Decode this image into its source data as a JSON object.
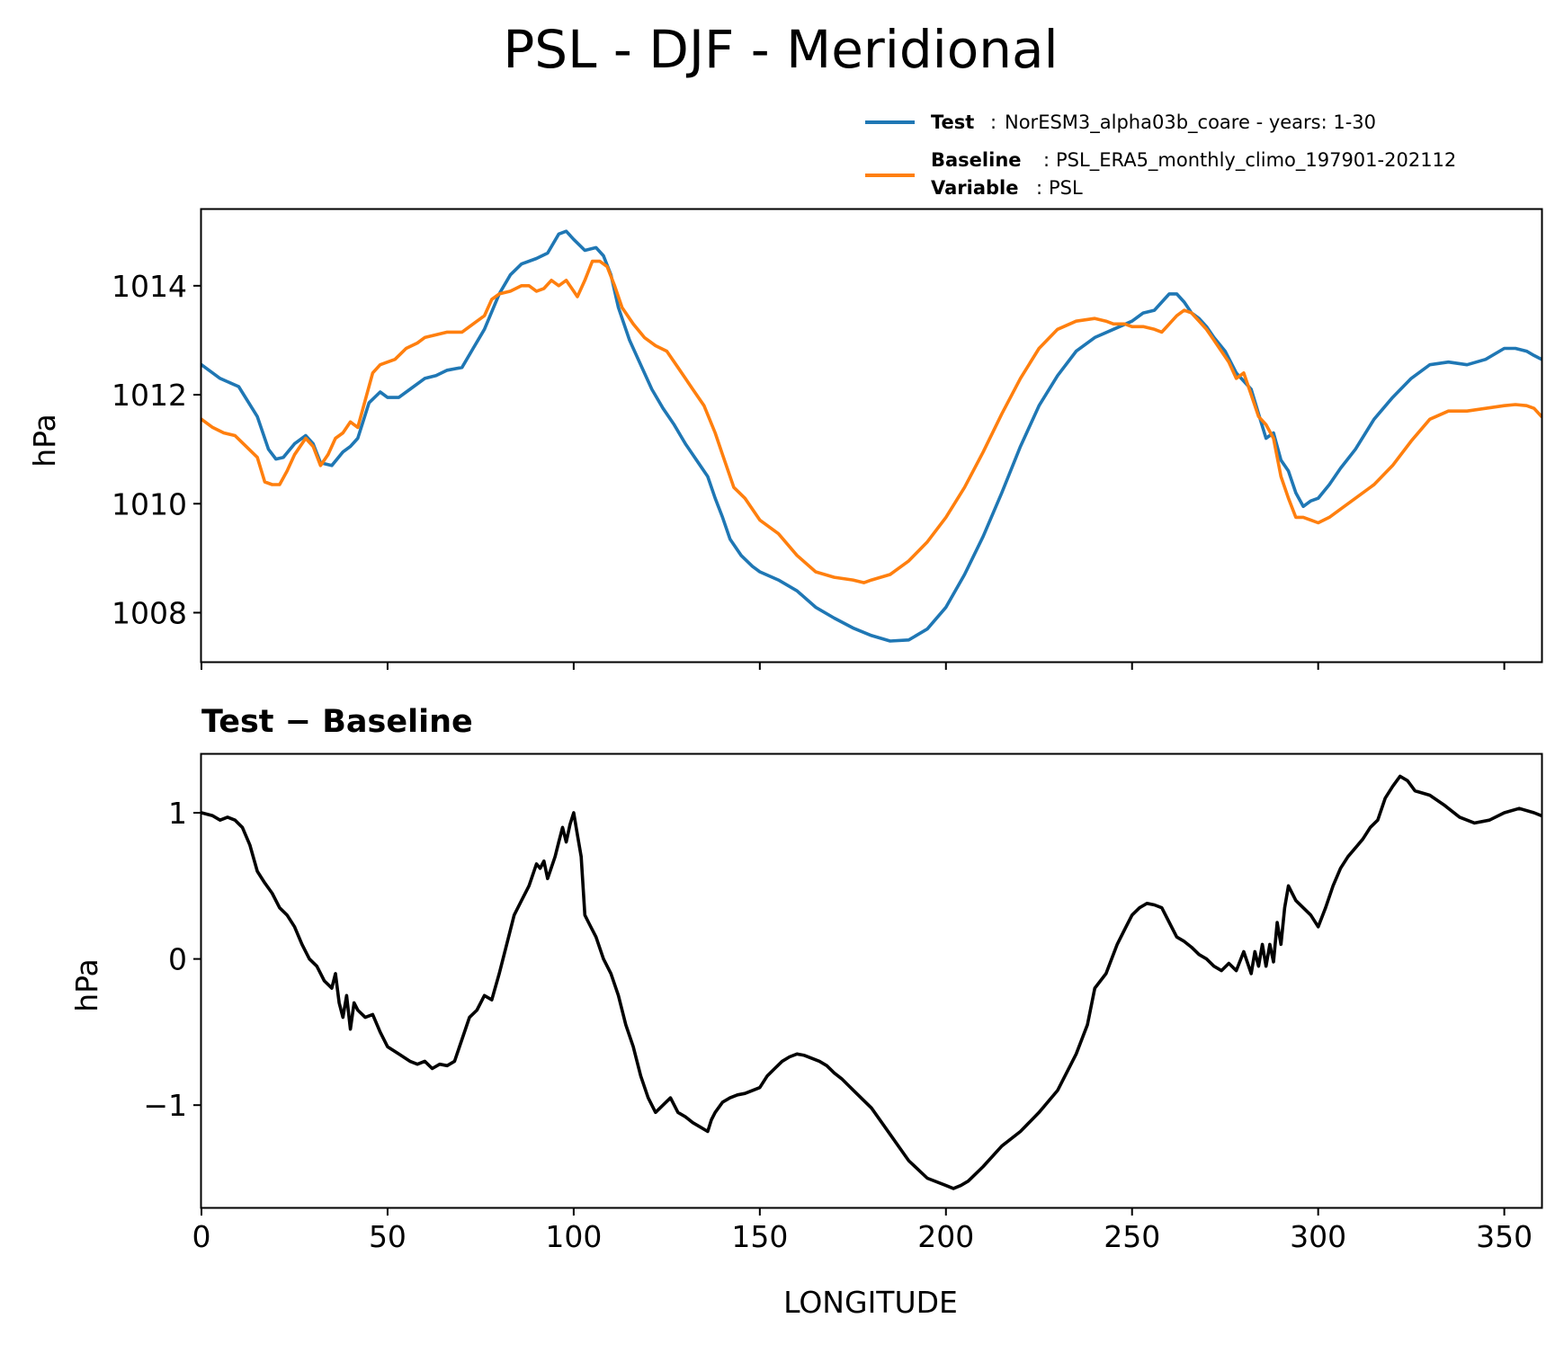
{
  "chart_data": [
    {
      "type": "line",
      "title": "PSL - DJF - Meridional",
      "ylabel": "hPa",
      "xlim": [
        0,
        360
      ],
      "ylim": [
        1007.1,
        1015.4
      ],
      "yticks": [
        1008,
        1010,
        1012,
        1014
      ],
      "xticks": [
        0,
        50,
        100,
        150,
        200,
        250,
        300,
        350
      ],
      "legend": {
        "placement": "top-right",
        "test_label": "Test",
        "test_value": "NorESM3_alpha03b_coare - years: 1-30",
        "baseline_label": "Baseline",
        "baseline_value": "PSL_ERA5_monthly_climo_197901-202112",
        "variable_label": "Variable",
        "variable_value": "PSL",
        "separator": ":"
      },
      "series": [
        {
          "name": "Test",
          "color": "#1f77b4",
          "x": [
            0,
            5,
            10,
            15,
            18,
            20,
            22,
            25,
            28,
            30,
            32,
            35,
            38,
            40,
            42,
            45,
            48,
            50,
            53,
            56,
            60,
            63,
            66,
            70,
            73,
            76,
            80,
            83,
            86,
            90,
            93,
            96,
            98,
            100,
            103,
            106,
            108,
            110,
            112,
            115,
            118,
            121,
            124,
            127,
            130,
            133,
            136,
            138,
            140,
            142,
            145,
            148,
            150,
            155,
            160,
            165,
            170,
            175,
            180,
            185,
            190,
            195,
            200,
            205,
            210,
            215,
            220,
            225,
            230,
            235,
            240,
            245,
            250,
            253,
            256,
            258,
            260,
            262,
            264,
            266,
            268,
            270,
            272,
            275,
            278,
            280,
            282,
            284,
            286,
            288,
            290,
            292,
            294,
            296,
            298,
            300,
            303,
            306,
            310,
            315,
            320,
            325,
            330,
            335,
            340,
            345,
            350,
            353,
            356,
            358,
            360
          ],
          "values": [
            1012.55,
            1012.3,
            1012.15,
            1011.6,
            1011.0,
            1010.82,
            1010.85,
            1011.1,
            1011.25,
            1011.1,
            1010.75,
            1010.7,
            1010.95,
            1011.05,
            1011.2,
            1011.85,
            1012.05,
            1011.95,
            1011.95,
            1012.1,
            1012.3,
            1012.35,
            1012.45,
            1012.5,
            1012.85,
            1013.2,
            1013.85,
            1014.2,
            1014.4,
            1014.5,
            1014.6,
            1014.95,
            1015.0,
            1014.85,
            1014.65,
            1014.7,
            1014.55,
            1014.2,
            1013.6,
            1013.0,
            1012.55,
            1012.1,
            1011.75,
            1011.45,
            1011.1,
            1010.8,
            1010.5,
            1010.1,
            1009.75,
            1009.35,
            1009.05,
            1008.85,
            1008.75,
            1008.6,
            1008.4,
            1008.1,
            1007.9,
            1007.72,
            1007.58,
            1007.48,
            1007.5,
            1007.7,
            1008.1,
            1008.7,
            1009.4,
            1010.2,
            1011.05,
            1011.8,
            1012.35,
            1012.8,
            1013.05,
            1013.2,
            1013.35,
            1013.5,
            1013.55,
            1013.7,
            1013.85,
            1013.85,
            1013.7,
            1013.5,
            1013.4,
            1013.25,
            1013.05,
            1012.8,
            1012.4,
            1012.25,
            1012.1,
            1011.65,
            1011.2,
            1011.3,
            1010.8,
            1010.6,
            1010.2,
            1009.95,
            1010.05,
            1010.1,
            1010.35,
            1010.65,
            1011.0,
            1011.55,
            1011.95,
            1012.3,
            1012.55,
            1012.6,
            1012.55,
            1012.65,
            1012.85,
            1012.85,
            1012.8,
            1012.72,
            1012.65
          ]
        },
        {
          "name": "Baseline",
          "color": "#ff7f0e",
          "x": [
            0,
            3,
            6,
            9,
            12,
            15,
            17,
            19,
            21,
            23,
            25,
            28,
            30,
            32,
            34,
            36,
            38,
            40,
            42,
            44,
            46,
            48,
            50,
            52,
            55,
            58,
            60,
            63,
            66,
            70,
            73,
            76,
            78,
            80,
            83,
            86,
            88,
            90,
            92,
            94,
            96,
            98,
            100,
            101,
            103,
            105,
            107,
            109,
            111,
            113,
            116,
            119,
            122,
            125,
            128,
            130,
            132,
            135,
            138,
            140,
            143,
            146,
            150,
            155,
            160,
            165,
            170,
            175,
            178,
            180,
            185,
            190,
            195,
            200,
            205,
            210,
            215,
            220,
            225,
            230,
            235,
            240,
            243,
            245,
            248,
            250,
            253,
            256,
            258,
            260,
            262,
            264,
            266,
            268,
            270,
            272,
            274,
            276,
            278,
            280,
            282,
            284,
            286,
            288,
            290,
            292,
            294,
            296,
            298,
            300,
            303,
            306,
            310,
            315,
            320,
            325,
            330,
            335,
            340,
            345,
            350,
            353,
            356,
            358,
            360
          ],
          "values": [
            1011.55,
            1011.4,
            1011.3,
            1011.25,
            1011.05,
            1010.85,
            1010.4,
            1010.35,
            1010.35,
            1010.6,
            1010.9,
            1011.2,
            1011.05,
            1010.7,
            1010.9,
            1011.2,
            1011.3,
            1011.5,
            1011.4,
            1011.9,
            1012.4,
            1012.55,
            1012.6,
            1012.65,
            1012.85,
            1012.95,
            1013.05,
            1013.1,
            1013.15,
            1013.15,
            1013.3,
            1013.45,
            1013.75,
            1013.85,
            1013.9,
            1014.0,
            1014.0,
            1013.9,
            1013.95,
            1014.1,
            1014.0,
            1014.1,
            1013.9,
            1013.8,
            1014.1,
            1014.45,
            1014.45,
            1014.35,
            1014.0,
            1013.6,
            1013.3,
            1013.05,
            1012.9,
            1012.8,
            1012.5,
            1012.3,
            1012.1,
            1011.8,
            1011.3,
            1010.9,
            1010.3,
            1010.1,
            1009.7,
            1009.45,
            1009.05,
            1008.75,
            1008.65,
            1008.6,
            1008.55,
            1008.6,
            1008.7,
            1008.95,
            1009.3,
            1009.75,
            1010.3,
            1010.95,
            1011.65,
            1012.3,
            1012.85,
            1013.2,
            1013.35,
            1013.4,
            1013.35,
            1013.3,
            1013.3,
            1013.25,
            1013.25,
            1013.2,
            1013.15,
            1013.3,
            1013.45,
            1013.55,
            1013.5,
            1013.35,
            1013.2,
            1013.0,
            1012.8,
            1012.6,
            1012.3,
            1012.4,
            1012.0,
            1011.6,
            1011.45,
            1011.2,
            1010.5,
            1010.1,
            1009.75,
            1009.75,
            1009.7,
            1009.65,
            1009.75,
            1009.9,
            1010.1,
            1010.35,
            1010.7,
            1011.15,
            1011.55,
            1011.7,
            1011.7,
            1011.75,
            1011.8,
            1011.82,
            1011.8,
            1011.75,
            1011.6
          ]
        }
      ]
    },
    {
      "type": "line",
      "title": "Test − Baseline",
      "xlabel": "LONGITUDE",
      "ylabel": "hPa",
      "xlim": [
        0,
        360
      ],
      "ylim": [
        -1.7,
        1.4
      ],
      "yticks": [
        1,
        0,
        -1
      ],
      "ytick_labels": [
        "1",
        "0",
        "−1"
      ],
      "xticks": [
        0,
        50,
        100,
        150,
        200,
        250,
        300,
        350
      ],
      "series": [
        {
          "name": "Test − Baseline",
          "color": "#000000",
          "x": [
            0,
            3,
            5,
            7,
            9,
            11,
            13,
            15,
            17,
            19,
            21,
            23,
            25,
            27,
            29,
            31,
            33,
            35,
            36,
            37,
            38,
            39,
            40,
            41,
            42,
            44,
            46,
            48,
            50,
            53,
            56,
            58,
            60,
            62,
            64,
            66,
            68,
            70,
            72,
            74,
            76,
            78,
            80,
            82,
            84,
            86,
            88,
            90,
            91,
            92,
            93,
            95,
            96,
            97,
            98,
            99,
            100,
            101,
            102,
            103,
            104,
            106,
            108,
            110,
            112,
            114,
            116,
            118,
            120,
            122,
            124,
            126,
            128,
            130,
            132,
            134,
            136,
            137,
            138,
            140,
            142,
            144,
            146,
            148,
            150,
            152,
            154,
            156,
            158,
            160,
            162,
            164,
            166,
            168,
            170,
            172,
            174,
            176,
            178,
            180,
            185,
            190,
            195,
            200,
            202,
            204,
            206,
            210,
            215,
            220,
            225,
            230,
            235,
            238,
            240,
            243,
            246,
            248,
            250,
            252,
            254,
            256,
            258,
            260,
            262,
            264,
            266,
            268,
            270,
            272,
            274,
            276,
            278,
            280,
            282,
            283,
            284,
            285,
            286,
            287,
            288,
            289,
            290,
            291,
            292,
            294,
            296,
            298,
            300,
            302,
            304,
            306,
            308,
            310,
            312,
            314,
            316,
            318,
            320,
            322,
            324,
            326,
            330,
            334,
            338,
            342,
            346,
            350,
            354,
            358,
            360
          ],
          "values": [
            1.0,
            0.98,
            0.95,
            0.97,
            0.95,
            0.9,
            0.78,
            0.6,
            0.52,
            0.45,
            0.35,
            0.3,
            0.22,
            0.1,
            0.0,
            -0.05,
            -0.15,
            -0.2,
            -0.1,
            -0.3,
            -0.4,
            -0.25,
            -0.48,
            -0.3,
            -0.35,
            -0.4,
            -0.38,
            -0.5,
            -0.6,
            -0.65,
            -0.7,
            -0.72,
            -0.7,
            -0.75,
            -0.72,
            -0.73,
            -0.7,
            -0.55,
            -0.4,
            -0.35,
            -0.25,
            -0.28,
            -0.1,
            0.1,
            0.3,
            0.4,
            0.5,
            0.65,
            0.62,
            0.67,
            0.55,
            0.7,
            0.8,
            0.9,
            0.8,
            0.92,
            1.0,
            0.85,
            0.7,
            0.3,
            0.25,
            0.15,
            0.0,
            -0.1,
            -0.25,
            -0.45,
            -0.6,
            -0.8,
            -0.95,
            -1.05,
            -1.0,
            -0.95,
            -1.05,
            -1.08,
            -1.12,
            -1.15,
            -1.18,
            -1.1,
            -1.05,
            -0.98,
            -0.95,
            -0.93,
            -0.92,
            -0.9,
            -0.88,
            -0.8,
            -0.75,
            -0.7,
            -0.67,
            -0.65,
            -0.66,
            -0.68,
            -0.7,
            -0.73,
            -0.78,
            -0.82,
            -0.87,
            -0.92,
            -0.97,
            -1.02,
            -1.2,
            -1.38,
            -1.5,
            -1.55,
            -1.57,
            -1.55,
            -1.52,
            -1.42,
            -1.28,
            -1.18,
            -1.05,
            -0.9,
            -0.65,
            -0.45,
            -0.2,
            -0.1,
            0.1,
            0.2,
            0.3,
            0.35,
            0.38,
            0.37,
            0.35,
            0.25,
            0.15,
            0.12,
            0.08,
            0.03,
            0.0,
            -0.05,
            -0.08,
            -0.03,
            -0.08,
            0.05,
            -0.1,
            0.05,
            -0.05,
            0.1,
            -0.05,
            0.1,
            -0.02,
            0.25,
            0.1,
            0.35,
            0.5,
            0.4,
            0.35,
            0.3,
            0.22,
            0.35,
            0.5,
            0.62,
            0.7,
            0.76,
            0.82,
            0.9,
            0.95,
            1.1,
            1.18,
            1.25,
            1.22,
            1.15,
            1.12,
            1.05,
            0.97,
            0.93,
            0.95,
            1.0,
            1.03,
            1.0,
            0.98
          ]
        }
      ]
    }
  ]
}
